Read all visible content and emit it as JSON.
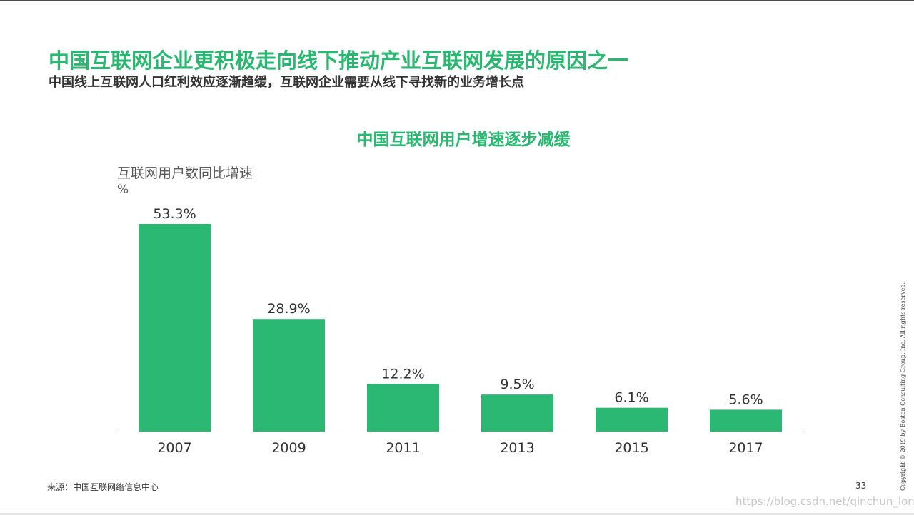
{
  "page": {
    "title": "中国互联网企业更积极走向线下推动产业互联网发展的原因之一",
    "subtitle": "中国线上互联网人口红利效应逐渐趋缓，互联网企业需要从线下寻找新的业务增长点",
    "source": "来源：中国互联网络信息中心",
    "page_number": "33",
    "copyright": "Copyright © 2019 by Boston Consulting Group, Inc. All rights reserved.",
    "watermark": "https://blog.csdn.net/qinchun_long"
  },
  "colors": {
    "accent": "#29b86f",
    "bar": "#2bb872",
    "text_dark": "#333333",
    "text_gray": "#595959"
  },
  "chart_data": {
    "type": "bar",
    "title": "中国互联网用户增速逐步减缓",
    "ylabel": "互联网用户数同比增速",
    "yunit": "%",
    "xlabel": "",
    "categories": [
      "2007",
      "2009",
      "2011",
      "2013",
      "2015",
      "2017"
    ],
    "values": [
      53.3,
      28.9,
      12.2,
      9.5,
      6.1,
      5.6
    ],
    "value_labels": [
      "53.3%",
      "28.9%",
      "12.2%",
      "9.5%",
      "6.1%",
      "5.6%"
    ],
    "ylim": [
      0,
      53.3
    ],
    "grid": false,
    "legend": "none"
  }
}
